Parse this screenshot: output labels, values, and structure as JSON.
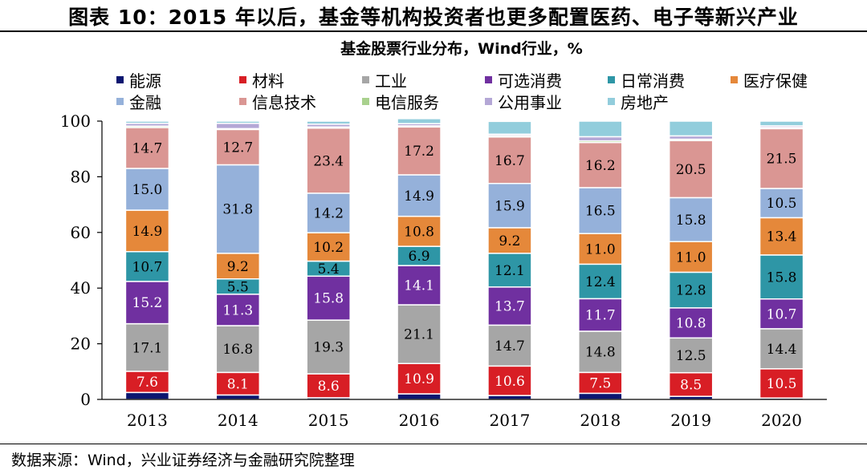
{
  "figure": {
    "title": "图表 10：2015 年以后，基金等机构投资者也更多配置医药、电子等新兴产业",
    "source": "数据来源：Wind，兴业证券经济与金融研究院整理"
  },
  "chart_data": {
    "type": "bar",
    "stacked": true,
    "title": "基金股票行业分布，Wind行业，%",
    "xlabel": "",
    "ylabel": "",
    "ylim": [
      0,
      100
    ],
    "yticks": [
      0,
      20,
      40,
      60,
      80,
      100
    ],
    "grid": false,
    "legend_position": "top",
    "categories": [
      "2013",
      "2014",
      "2015",
      "2016",
      "2017",
      "2018",
      "2019",
      "2020"
    ],
    "series": [
      {
        "name": "能源",
        "color": "#0b1670",
        "values": [
          2.5,
          1.6,
          0.6,
          2.0,
          1.4,
          2.2,
          1.1,
          0.5
        ],
        "labels": [
          false,
          false,
          false,
          false,
          false,
          false,
          false,
          false
        ]
      },
      {
        "name": "材料",
        "color": "#d81e25",
        "values": [
          7.6,
          8.1,
          8.6,
          10.9,
          10.6,
          7.5,
          8.5,
          10.5
        ],
        "labels": [
          true,
          true,
          true,
          true,
          true,
          true,
          true,
          true
        ]
      },
      {
        "name": "工业",
        "color": "#a6a6a6",
        "values": [
          17.1,
          16.8,
          19.3,
          21.1,
          14.7,
          14.8,
          12.5,
          14.4
        ],
        "labels": [
          true,
          true,
          true,
          true,
          true,
          true,
          true,
          true
        ]
      },
      {
        "name": "可选消费",
        "color": "#7030a0",
        "values": [
          15.2,
          11.3,
          15.8,
          14.1,
          13.7,
          11.7,
          10.8,
          10.7
        ],
        "labels": [
          true,
          true,
          true,
          true,
          true,
          true,
          true,
          true
        ]
      },
      {
        "name": "日常消费",
        "color": "#2e96a6",
        "values": [
          10.7,
          5.5,
          5.4,
          6.9,
          12.1,
          12.4,
          12.8,
          15.8
        ],
        "labels": [
          true,
          true,
          true,
          true,
          true,
          true,
          true,
          true
        ]
      },
      {
        "name": "医疗保健",
        "color": "#e5883a",
        "values": [
          14.9,
          9.2,
          10.2,
          10.8,
          9.2,
          11.0,
          11.0,
          13.4
        ],
        "labels": [
          true,
          true,
          true,
          true,
          true,
          true,
          true,
          true
        ]
      },
      {
        "name": "金融",
        "color": "#95b1da",
        "values": [
          15.0,
          31.8,
          14.2,
          14.9,
          15.9,
          16.5,
          15.8,
          10.5
        ],
        "labels": [
          true,
          true,
          true,
          true,
          true,
          true,
          true,
          true
        ]
      },
      {
        "name": "信息技术",
        "color": "#da9693",
        "values": [
          14.7,
          12.7,
          23.4,
          17.2,
          16.7,
          16.2,
          20.5,
          21.5
        ],
        "labels": [
          true,
          true,
          true,
          true,
          true,
          true,
          true,
          true
        ]
      },
      {
        "name": "电信服务",
        "color": "#a9d18e",
        "values": [
          0.5,
          0.3,
          0.4,
          0.4,
          0.5,
          0.6,
          0.5,
          0.4
        ],
        "labels": [
          false,
          false,
          false,
          false,
          false,
          false,
          false,
          false
        ]
      },
      {
        "name": "公用事业",
        "color": "#b4a7d6",
        "values": [
          1.0,
          1.9,
          1.0,
          0.8,
          0.5,
          1.5,
          1.2,
          0.6
        ],
        "labels": [
          false,
          false,
          false,
          false,
          false,
          false,
          false,
          false
        ]
      },
      {
        "name": "房地产",
        "color": "#92cddc",
        "values": [
          0.8,
          0.8,
          1.1,
          1.8,
          4.6,
          5.6,
          5.3,
          1.7
        ],
        "labels": [
          false,
          false,
          false,
          false,
          false,
          false,
          false,
          false
        ]
      }
    ]
  }
}
